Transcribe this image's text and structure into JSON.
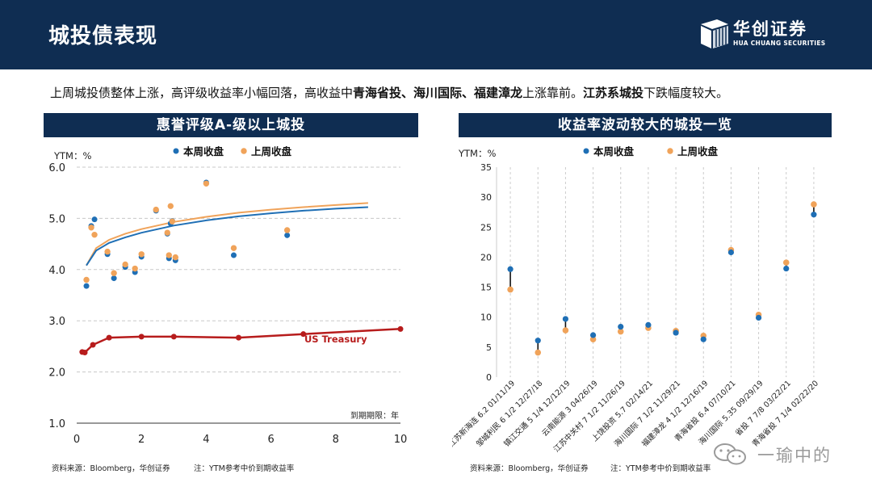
{
  "header": {
    "title": "城投债表现"
  },
  "logo": {
    "name": "华创证券",
    "en": "HUA CHUANG SECURITIES"
  },
  "summary": {
    "parts": [
      {
        "text": "上周城投债整体上涨，高评级收益率小幅回落，高收益中",
        "bold": false
      },
      {
        "text": "青海省投、海川国际、福建漳龙",
        "bold": true
      },
      {
        "text": "上涨靠前。",
        "bold": false
      },
      {
        "text": "江苏系城投",
        "bold": true
      },
      {
        "text": "下跌幅度较大。",
        "bold": false
      }
    ]
  },
  "left_panel": {
    "title": "惠誉评级A-级以上城投",
    "source": "资料来源：Bloomberg，华创证券",
    "note": "注：YTM参考中价到期收益率"
  },
  "right_panel": {
    "title": "收益率波动较大的城投一览",
    "source": "资料来源：Bloomberg，华创证券",
    "note": "注：YTM参考中价到期收益率"
  },
  "watermark": {
    "text": "一瑜中的"
  },
  "chart_data": [
    {
      "type": "scatter",
      "ylabel": "YTM：%",
      "xlabel": "到期期限：年",
      "xlim": [
        0,
        10
      ],
      "ylim": [
        1.0,
        6.0
      ],
      "x_ticks": [
        0,
        2,
        4,
        6,
        8,
        10
      ],
      "y_ticks": [
        1.0,
        2.0,
        3.0,
        4.0,
        5.0,
        6.0
      ],
      "grid": "horizontal-dashed",
      "legend_position": "top-center",
      "colors": {
        "this_week": "#1f6fb5",
        "last_week": "#f0a35a",
        "treasury": "#b71c1c"
      },
      "series": [
        {
          "name": "本周收盘",
          "points": [
            [
              0.3,
              3.68
            ],
            [
              0.45,
              4.85
            ],
            [
              0.55,
              4.98
            ],
            [
              0.95,
              4.3
            ],
            [
              1.15,
              3.83
            ],
            [
              1.5,
              4.05
            ],
            [
              1.8,
              3.95
            ],
            [
              2.0,
              4.25
            ],
            [
              2.45,
              5.15
            ],
            [
              2.8,
              4.7
            ],
            [
              2.85,
              4.22
            ],
            [
              2.9,
              4.9
            ],
            [
              2.95,
              4.95
            ],
            [
              3.05,
              4.18
            ],
            [
              4.0,
              5.7
            ],
            [
              4.85,
              4.28
            ],
            [
              6.5,
              4.67
            ]
          ]
        },
        {
          "name": "上周收盘",
          "points": [
            [
              0.3,
              3.8
            ],
            [
              0.45,
              4.82
            ],
            [
              0.55,
              4.68
            ],
            [
              0.95,
              4.35
            ],
            [
              1.15,
              3.93
            ],
            [
              1.5,
              4.1
            ],
            [
              1.8,
              4.02
            ],
            [
              2.0,
              4.3
            ],
            [
              2.45,
              5.17
            ],
            [
              2.8,
              4.72
            ],
            [
              2.85,
              4.28
            ],
            [
              2.9,
              5.24
            ],
            [
              2.95,
              4.94
            ],
            [
              3.05,
              4.24
            ],
            [
              4.0,
              5.68
            ],
            [
              4.85,
              4.42
            ],
            [
              6.5,
              4.77
            ]
          ]
        },
        {
          "name": "US Treasury",
          "points": [
            [
              0.17,
              2.39
            ],
            [
              0.25,
              2.38
            ],
            [
              0.5,
              2.53
            ],
            [
              1,
              2.67
            ],
            [
              2,
              2.69
            ],
            [
              3,
              2.69
            ],
            [
              5,
              2.67
            ],
            [
              7,
              2.74
            ],
            [
              10,
              2.84
            ]
          ]
        }
      ],
      "fit_this_week": {
        "x": [
          0.3,
          0.6,
          1,
          1.5,
          2,
          3,
          4,
          5,
          6,
          7,
          8,
          9
        ],
        "y": [
          4.08,
          4.37,
          4.52,
          4.63,
          4.72,
          4.86,
          4.96,
          5.04,
          5.1,
          5.15,
          5.19,
          5.22
        ]
      },
      "fit_last_week": {
        "x": [
          0.3,
          0.6,
          1,
          1.5,
          2,
          3,
          4,
          5,
          6,
          7,
          8,
          9
        ],
        "y": [
          4.08,
          4.42,
          4.58,
          4.7,
          4.79,
          4.93,
          5.03,
          5.11,
          5.17,
          5.22,
          5.26,
          5.3
        ]
      },
      "annotation": "US Treasury"
    },
    {
      "type": "scatter",
      "ylabel": "YTM：%",
      "ylim": [
        0,
        35
      ],
      "y_ticks": [
        0,
        5,
        10,
        15,
        20,
        25,
        30,
        35
      ],
      "grid": "vertical-dashed",
      "legend_position": "top-center",
      "categories": [
        "江苏新海连 6.2 01/11/19",
        "邹城利民 6 1/2 12/27/18",
        "镇江交通 5 1/4 12/12/19",
        "云南能源 3 04/26/19",
        "江苏中关村 7 1/2 11/26/19",
        "上饶投资 5.7 02/14/21",
        "海川国际 7 1/2 11/29/21",
        "福建漳龙 4 1/2 12/16/19",
        "青海省投 6.4 07/10/21",
        "海川国际 5.35 09/29/19",
        "省投 7 7/8 03/22/21",
        "青海省投 7 1/4 02/22/20"
      ],
      "series": [
        {
          "name": "本周收盘",
          "values": [
            18.0,
            6.1,
            9.7,
            7.0,
            8.4,
            8.7,
            7.4,
            6.3,
            20.8,
            9.9,
            18.1,
            27.1
          ]
        },
        {
          "name": "上周收盘",
          "values": [
            14.6,
            4.1,
            7.8,
            6.3,
            7.6,
            8.2,
            7.7,
            6.9,
            21.2,
            10.4,
            19.1,
            28.8
          ]
        }
      ]
    }
  ]
}
